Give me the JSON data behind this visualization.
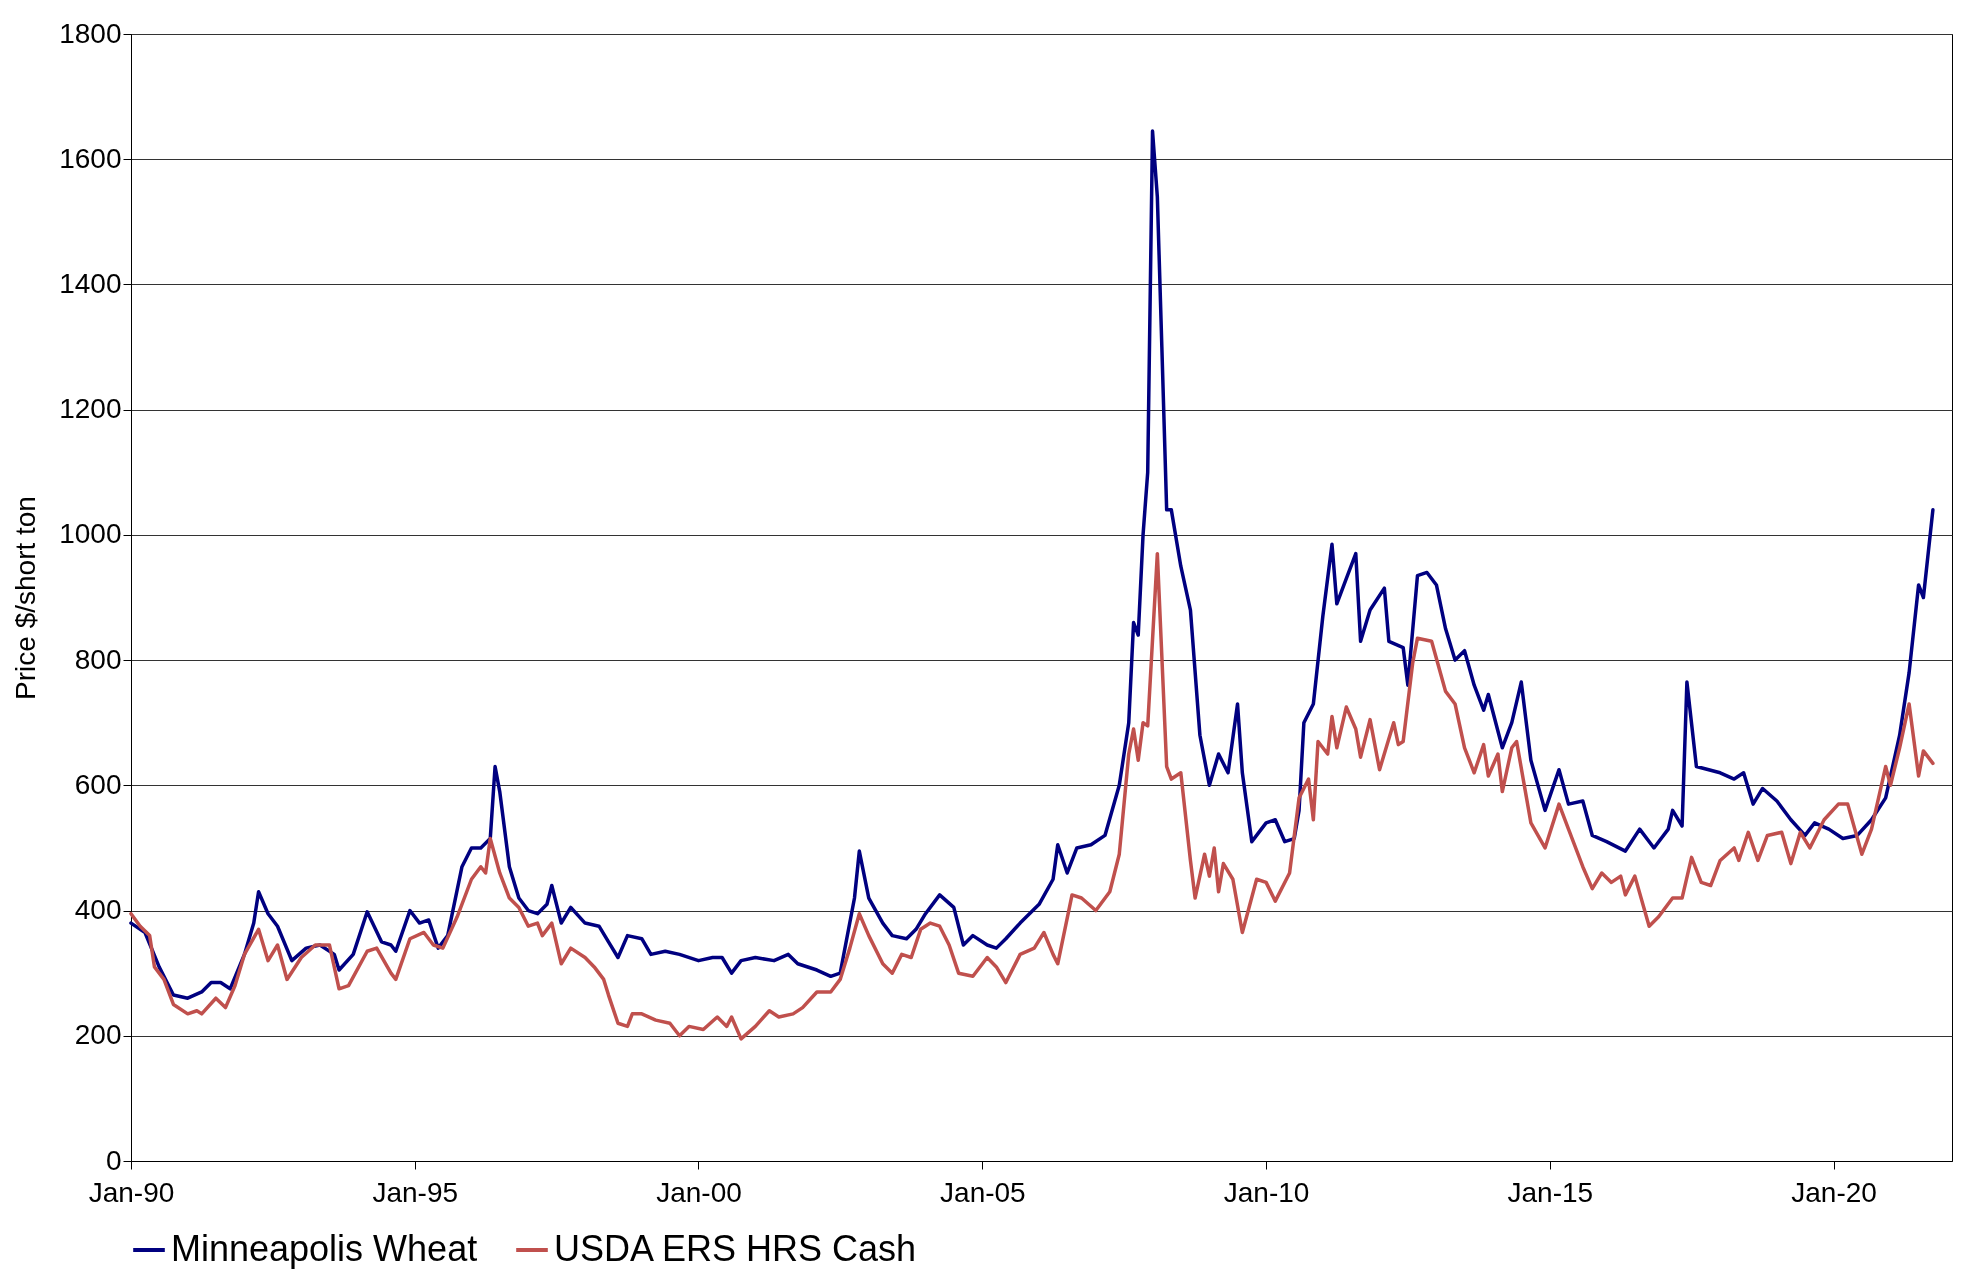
{
  "chart_data": {
    "type": "line",
    "ylabel": "Price $/short ton",
    "xlim": [
      "1990-01",
      "2022-02"
    ],
    "ylim": [
      0,
      1800
    ],
    "xticks": [
      {
        "value": "1990-01",
        "label": "Jan-90"
      },
      {
        "value": "1995-01",
        "label": "Jan-95"
      },
      {
        "value": "2000-01",
        "label": "Jan-00"
      },
      {
        "value": "2005-01",
        "label": "Jan-05"
      },
      {
        "value": "2010-01",
        "label": "Jan-10"
      },
      {
        "value": "2015-01",
        "label": "Jan-15"
      },
      {
        "value": "2020-01",
        "label": "Jan-20"
      }
    ],
    "yticks": [
      0,
      200,
      400,
      600,
      800,
      1000,
      1200,
      1400,
      1600,
      1800
    ],
    "grid": "y",
    "legend": "bottom",
    "line_style": "solid",
    "series": [
      {
        "name": "Minneapolis Wheat",
        "color": "#000080",
        "x": [
          "1990-01",
          "1990-04",
          "1990-07",
          "1990-10",
          "1991-01",
          "1991-04",
          "1991-06",
          "1991-08",
          "1991-10",
          "1992-01",
          "1992-03",
          "1992-04",
          "1992-06",
          "1992-08",
          "1992-11",
          "1993-02",
          "1993-05",
          "1993-08",
          "1993-09",
          "1993-12",
          "1994-03",
          "1994-06",
          "1994-08",
          "1994-09",
          "1994-12",
          "1995-02",
          "1995-04",
          "1995-06",
          "1995-08",
          "1995-11",
          "1996-01",
          "1996-03",
          "1996-05",
          "1996-06",
          "1996-07",
          "1996-09",
          "1996-11",
          "1997-01",
          "1997-03",
          "1997-05",
          "1997-06",
          "1997-08",
          "1997-10",
          "1998-01",
          "1998-04",
          "1998-06",
          "1998-08",
          "1998-10",
          "1999-01",
          "1999-03",
          "1999-06",
          "1999-09",
          "2000-01",
          "2000-04",
          "2000-06",
          "2000-08",
          "2000-10",
          "2001-01",
          "2001-05",
          "2001-08",
          "2001-10",
          "2002-02",
          "2002-05",
          "2002-07",
          "2002-10",
          "2002-11",
          "2003-01",
          "2003-04",
          "2003-06",
          "2003-09",
          "2003-11",
          "2004-01",
          "2004-04",
          "2004-07",
          "2004-09",
          "2004-11",
          "2005-02",
          "2005-04",
          "2005-06",
          "2005-09",
          "2006-01",
          "2006-04",
          "2006-05",
          "2006-07",
          "2006-09",
          "2006-12",
          "2007-03",
          "2007-06",
          "2007-08",
          "2007-09",
          "2007-10",
          "2007-11",
          "2007-12",
          "2008-01",
          "2008-02",
          "2008-03",
          "2008-04",
          "2008-05",
          "2008-07",
          "2008-09",
          "2008-11",
          "2009-01",
          "2009-03",
          "2009-05",
          "2009-07",
          "2009-08",
          "2009-10",
          "2010-01",
          "2010-03",
          "2010-05",
          "2010-07",
          "2010-08",
          "2010-09",
          "2010-11",
          "2011-01",
          "2011-03",
          "2011-04",
          "2011-06",
          "2011-08",
          "2011-09",
          "2011-11",
          "2012-02",
          "2012-03",
          "2012-06",
          "2012-07",
          "2012-09",
          "2012-11",
          "2013-01",
          "2013-03",
          "2013-05",
          "2013-07",
          "2013-09",
          "2013-11",
          "2013-12",
          "2014-03",
          "2014-05",
          "2014-07",
          "2014-09",
          "2014-12",
          "2015-03",
          "2015-05",
          "2015-08",
          "2015-10",
          "2016-01",
          "2016-05",
          "2016-08",
          "2016-11",
          "2017-02",
          "2017-03",
          "2017-05",
          "2017-06",
          "2017-08",
          "2018-01",
          "2018-04",
          "2018-06",
          "2018-08",
          "2018-10",
          "2019-01",
          "2019-04",
          "2019-07",
          "2019-09",
          "2019-12",
          "2020-03",
          "2020-06",
          "2020-09",
          "2020-12",
          "2021-03",
          "2021-05",
          "2021-07",
          "2021-08",
          "2021-10"
        ],
        "values": [
          380,
          365,
          310,
          265,
          260,
          270,
          285,
          285,
          275,
          330,
          380,
          430,
          395,
          375,
          320,
          340,
          345,
          330,
          305,
          330,
          398,
          350,
          345,
          335,
          400,
          380,
          385,
          340,
          360,
          470,
          500,
          500,
          515,
          630,
          590,
          470,
          420,
          400,
          395,
          410,
          440,
          380,
          405,
          380,
          375,
          350,
          325,
          360,
          355,
          330,
          335,
          330,
          320,
          325,
          325,
          300,
          320,
          325,
          320,
          330,
          315,
          305,
          295,
          300,
          420,
          495,
          420,
          380,
          360,
          355,
          370,
          395,
          425,
          405,
          345,
          360,
          345,
          340,
          355,
          380,
          410,
          450,
          505,
          460,
          500,
          505,
          520,
          600,
          700,
          860,
          840,
          1000,
          1100,
          1645,
          1540,
          1300,
          1040,
          1040,
          950,
          880,
          680,
          600,
          650,
          620,
          730,
          620,
          510,
          540,
          545,
          510,
          515,
          560,
          700,
          730,
          870,
          985,
          890,
          930,
          970,
          830,
          880,
          915,
          830,
          820,
          760,
          935,
          940,
          920,
          850,
          800,
          815,
          760,
          720,
          745,
          660,
          700,
          765,
          640,
          560,
          625,
          570,
          575,
          520,
          510,
          495,
          530,
          500,
          530,
          560,
          535,
          765,
          630,
          620,
          610,
          620,
          570,
          595,
          575,
          545,
          520,
          540,
          530,
          515,
          520,
          545,
          580,
          680,
          780,
          920,
          900,
          1040
        ]
      },
      {
        "name": "USDA ERS HRS Cash",
        "color": "#c0504d",
        "x": [
          "1990-01",
          "1990-03",
          "1990-05",
          "1990-06",
          "1990-08",
          "1990-10",
          "1991-01",
          "1991-03",
          "1991-04",
          "1991-07",
          "1991-09",
          "1991-11",
          "1992-01",
          "1992-04",
          "1992-06",
          "1992-08",
          "1992-10",
          "1993-01",
          "1993-04",
          "1993-07",
          "1993-09",
          "1993-11",
          "1994-03",
          "1994-05",
          "1994-08",
          "1994-09",
          "1994-12",
          "1995-03",
          "1995-05",
          "1995-07",
          "1995-10",
          "1996-01",
          "1996-03",
          "1996-04",
          "1996-05",
          "1996-07",
          "1996-09",
          "1996-11",
          "1997-01",
          "1997-03",
          "1997-04",
          "1997-06",
          "1997-08",
          "1997-10",
          "1998-01",
          "1998-03",
          "1998-05",
          "1998-06",
          "1998-08",
          "1998-10",
          "1998-11",
          "1999-01",
          "1999-04",
          "1999-07",
          "1999-09",
          "1999-11",
          "2000-02",
          "2000-05",
          "2000-07",
          "2000-08",
          "2000-10",
          "2001-01",
          "2001-04",
          "2001-06",
          "2001-09",
          "2001-11",
          "2002-02",
          "2002-05",
          "2002-07",
          "2002-09",
          "2002-11",
          "2003-01",
          "2003-04",
          "2003-06",
          "2003-08",
          "2003-10",
          "2003-12",
          "2004-02",
          "2004-04",
          "2004-06",
          "2004-08",
          "2004-11",
          "2005-02",
          "2005-04",
          "2005-06",
          "2005-09",
          "2005-12",
          "2006-02",
          "2006-04",
          "2006-05",
          "2006-08",
          "2006-10",
          "2007-01",
          "2007-04",
          "2007-06",
          "2007-08",
          "2007-09",
          "2007-10",
          "2007-11",
          "2007-12",
          "2008-02",
          "2008-04",
          "2008-05",
          "2008-07",
          "2008-09",
          "2008-10",
          "2008-12",
          "2009-01",
          "2009-02",
          "2009-03",
          "2009-04",
          "2009-06",
          "2009-08",
          "2009-11",
          "2010-01",
          "2010-03",
          "2010-06",
          "2010-08",
          "2010-10",
          "2010-11",
          "2010-12",
          "2011-02",
          "2011-03",
          "2011-04",
          "2011-06",
          "2011-08",
          "2011-09",
          "2011-11",
          "2012-01",
          "2012-04",
          "2012-05",
          "2012-06",
          "2012-08",
          "2012-09",
          "2012-12",
          "2013-03",
          "2013-05",
          "2013-07",
          "2013-09",
          "2013-11",
          "2013-12",
          "2014-02",
          "2014-03",
          "2014-05",
          "2014-06",
          "2014-09",
          "2014-12",
          "2015-03",
          "2015-05",
          "2015-08",
          "2015-10",
          "2015-12",
          "2016-02",
          "2016-04",
          "2016-05",
          "2016-07",
          "2016-10",
          "2016-12",
          "2017-03",
          "2017-05",
          "2017-07",
          "2017-09",
          "2017-11",
          "2018-01",
          "2018-04",
          "2018-05",
          "2018-07",
          "2018-09",
          "2018-11",
          "2019-02",
          "2019-04",
          "2019-06",
          "2019-08",
          "2019-11",
          "2020-02",
          "2020-04",
          "2020-07",
          "2020-09",
          "2020-12",
          "2021-01",
          "2021-03",
          "2021-05",
          "2021-07",
          "2021-08",
          "2021-10"
        ],
        "values": [
          395,
          375,
          360,
          310,
          290,
          250,
          235,
          240,
          235,
          260,
          245,
          280,
          330,
          370,
          320,
          345,
          290,
          325,
          345,
          345,
          275,
          280,
          335,
          340,
          300,
          290,
          355,
          365,
          345,
          340,
          390,
          450,
          470,
          460,
          515,
          460,
          420,
          405,
          375,
          380,
          360,
          380,
          315,
          340,
          325,
          310,
          290,
          265,
          220,
          215,
          235,
          235,
          225,
          220,
          200,
          215,
          210,
          230,
          215,
          230,
          195,
          215,
          240,
          230,
          235,
          245,
          270,
          270,
          290,
          340,
          395,
          360,
          315,
          300,
          330,
          325,
          370,
          380,
          375,
          345,
          300,
          295,
          325,
          310,
          285,
          330,
          340,
          365,
          330,
          315,
          425,
          420,
          400,
          430,
          490,
          650,
          690,
          640,
          700,
          695,
          970,
          630,
          610,
          620,
          480,
          420,
          490,
          455,
          500,
          430,
          475,
          450,
          365,
          450,
          445,
          415,
          460,
          580,
          610,
          545,
          670,
          650,
          710,
          660,
          725,
          690,
          645,
          705,
          625,
          700,
          665,
          670,
          795,
          835,
          830,
          750,
          730,
          660,
          620,
          665,
          615,
          650,
          590,
          660,
          670,
          540,
          500,
          570,
          530,
          470,
          435,
          460,
          445,
          455,
          425,
          455,
          375,
          390,
          420,
          420,
          485,
          445,
          440,
          480,
          500,
          480,
          525,
          480,
          520,
          525,
          475,
          525,
          500,
          545,
          570,
          570,
          490,
          530,
          630,
          600,
          660,
          730,
          615,
          655,
          635
        ]
      }
    ]
  }
}
